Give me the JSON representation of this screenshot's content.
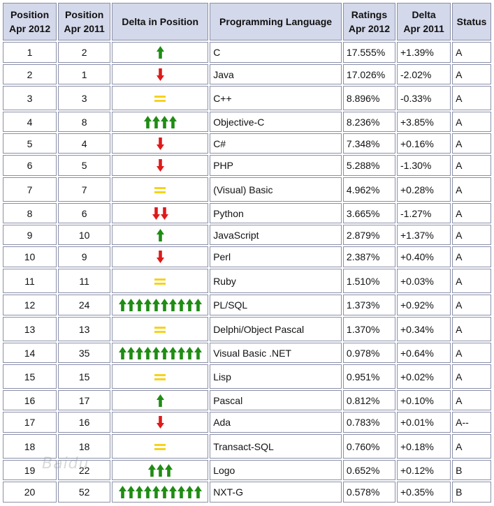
{
  "headers": {
    "pos2012": [
      "Position",
      "Apr 2012"
    ],
    "pos2011": [
      "Position",
      "Apr 2011"
    ],
    "delta_pos": "Delta in Position",
    "language": "Programming Language",
    "ratings": [
      "Ratings",
      "Apr 2012"
    ],
    "delta": [
      "Delta",
      "Apr 2011"
    ],
    "status": "Status"
  },
  "colors": {
    "up": "#1f8c14",
    "down": "#e01919",
    "same": "#f5d31d",
    "link": "#27339a",
    "header_bg": "#d3d8ea"
  },
  "rows": [
    {
      "pos2012": "1",
      "pos2011": "2",
      "arrow": "up",
      "count": 1,
      "language": "C",
      "rating": "17.555%",
      "delta": "+1.39%",
      "status": "A"
    },
    {
      "pos2012": "2",
      "pos2011": "1",
      "arrow": "down",
      "count": 1,
      "language": "Java",
      "rating": "17.026%",
      "delta": "-2.02%",
      "status": "A"
    },
    {
      "pos2012": "3",
      "pos2011": "3",
      "arrow": "same",
      "count": 1,
      "language": "C++",
      "rating": "8.896%",
      "delta": "-0.33%",
      "status": "A"
    },
    {
      "pos2012": "4",
      "pos2011": "8",
      "arrow": "up",
      "count": 4,
      "language": "Objective-C",
      "rating": "8.236%",
      "delta": "+3.85%",
      "status": "A"
    },
    {
      "pos2012": "5",
      "pos2011": "4",
      "arrow": "down",
      "count": 1,
      "language": "C#",
      "rating": "7.348%",
      "delta": "+0.16%",
      "status": "A"
    },
    {
      "pos2012": "6",
      "pos2011": "5",
      "arrow": "down",
      "count": 1,
      "language": "PHP",
      "rating": "5.288%",
      "delta": "-1.30%",
      "status": "A"
    },
    {
      "pos2012": "7",
      "pos2011": "7",
      "arrow": "same",
      "count": 1,
      "language": "(Visual) Basic",
      "rating": "4.962%",
      "delta": "+0.28%",
      "status": "A"
    },
    {
      "pos2012": "8",
      "pos2011": "6",
      "arrow": "down",
      "count": 2,
      "language": "Python",
      "rating": "3.665%",
      "delta": "-1.27%",
      "status": "A"
    },
    {
      "pos2012": "9",
      "pos2011": "10",
      "arrow": "up",
      "count": 1,
      "language": "JavaScript",
      "rating": "2.879%",
      "delta": "+1.37%",
      "status": "A"
    },
    {
      "pos2012": "10",
      "pos2011": "9",
      "arrow": "down",
      "count": 1,
      "language": "Perl",
      "rating": "2.387%",
      "delta": "+0.40%",
      "status": "A"
    },
    {
      "pos2012": "11",
      "pos2011": "11",
      "arrow": "same",
      "count": 1,
      "language": "Ruby",
      "rating": "1.510%",
      "delta": "+0.03%",
      "status": "A"
    },
    {
      "pos2012": "12",
      "pos2011": "24",
      "arrow": "up",
      "count": 10,
      "language": "PL/SQL",
      "rating": "1.373%",
      "delta": "+0.92%",
      "status": "A"
    },
    {
      "pos2012": "13",
      "pos2011": "13",
      "arrow": "same",
      "count": 1,
      "language": "Delphi/Object Pascal",
      "rating": "1.370%",
      "delta": "+0.34%",
      "status": "A"
    },
    {
      "pos2012": "14",
      "pos2011": "35",
      "arrow": "up",
      "count": 10,
      "language": "Visual Basic .NET",
      "rating": "0.978%",
      "delta": "+0.64%",
      "status": "A"
    },
    {
      "pos2012": "15",
      "pos2011": "15",
      "arrow": "same",
      "count": 1,
      "language": "Lisp",
      "rating": "0.951%",
      "delta": "+0.02%",
      "status": "A"
    },
    {
      "pos2012": "16",
      "pos2011": "17",
      "arrow": "up",
      "count": 1,
      "language": "Pascal",
      "rating": "0.812%",
      "delta": "+0.10%",
      "status": "A"
    },
    {
      "pos2012": "17",
      "pos2011": "16",
      "arrow": "down",
      "count": 1,
      "language": "Ada",
      "rating": "0.783%",
      "delta": "+0.01%",
      "status": "A--"
    },
    {
      "pos2012": "18",
      "pos2011": "18",
      "arrow": "same",
      "count": 1,
      "language": "Transact-SQL",
      "rating": "0.760%",
      "delta": "+0.18%",
      "status": "A"
    },
    {
      "pos2012": "19",
      "pos2011": "22",
      "arrow": "up",
      "count": 3,
      "language": "Logo",
      "rating": "0.652%",
      "delta": "+0.12%",
      "status": "B"
    },
    {
      "pos2012": "20",
      "pos2011": "52",
      "arrow": "up",
      "count": 10,
      "language": "NXT-G",
      "rating": "0.578%",
      "delta": "+0.35%",
      "status": "B"
    }
  ]
}
